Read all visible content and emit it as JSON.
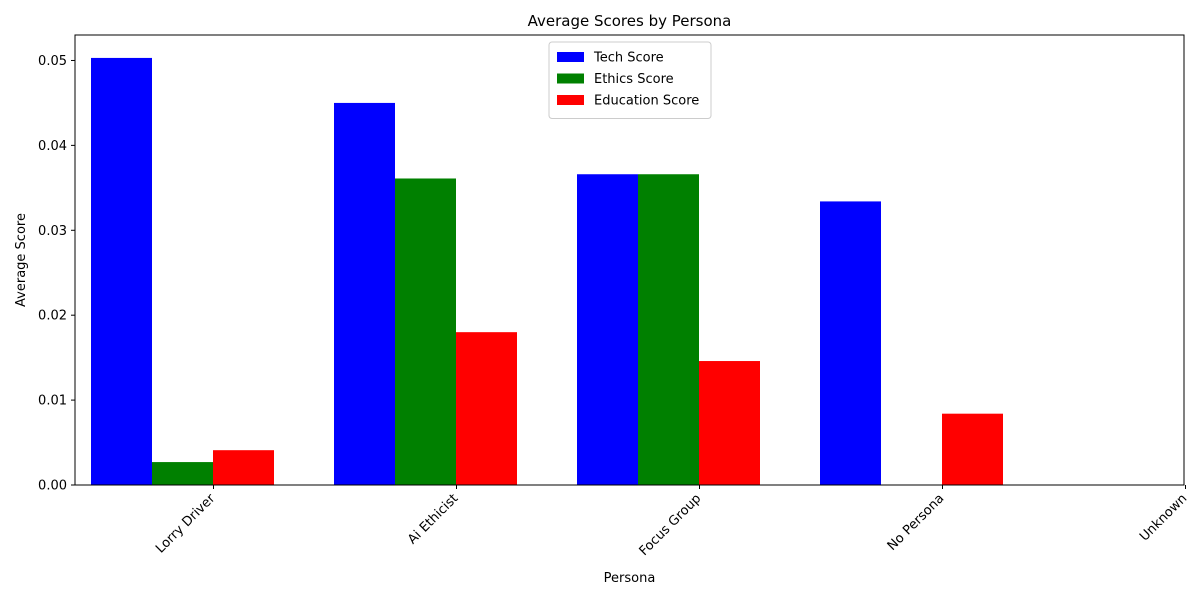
{
  "chart_data": {
    "type": "bar",
    "title": "Average Scores by Persona",
    "xlabel": "Persona",
    "ylabel": "Average Score",
    "categories": [
      "Lorry Driver",
      "Ai Ethicist",
      "Focus Group",
      "No Persona",
      "Unknown"
    ],
    "series": [
      {
        "name": "Tech Score",
        "color": "#0000ff",
        "values": [
          0.0503,
          0.045,
          0.0366,
          0.0334,
          0.0
        ]
      },
      {
        "name": "Ethics Score",
        "color": "#008000",
        "values": [
          0.0027,
          0.0361,
          0.0366,
          0.0,
          0.0
        ]
      },
      {
        "name": "Education Score",
        "color": "#ff0000",
        "values": [
          0.0041,
          0.018,
          0.0146,
          0.0084,
          0.0
        ]
      }
    ],
    "ylim": [
      0,
      0.053
    ],
    "yticks": [
      0.0,
      0.01,
      0.02,
      0.03,
      0.04,
      0.05
    ],
    "ytick_labels": [
      "0.00",
      "0.01",
      "0.02",
      "0.03",
      "0.04",
      "0.05"
    ],
    "grid": false,
    "legend_position": "top-center"
  }
}
